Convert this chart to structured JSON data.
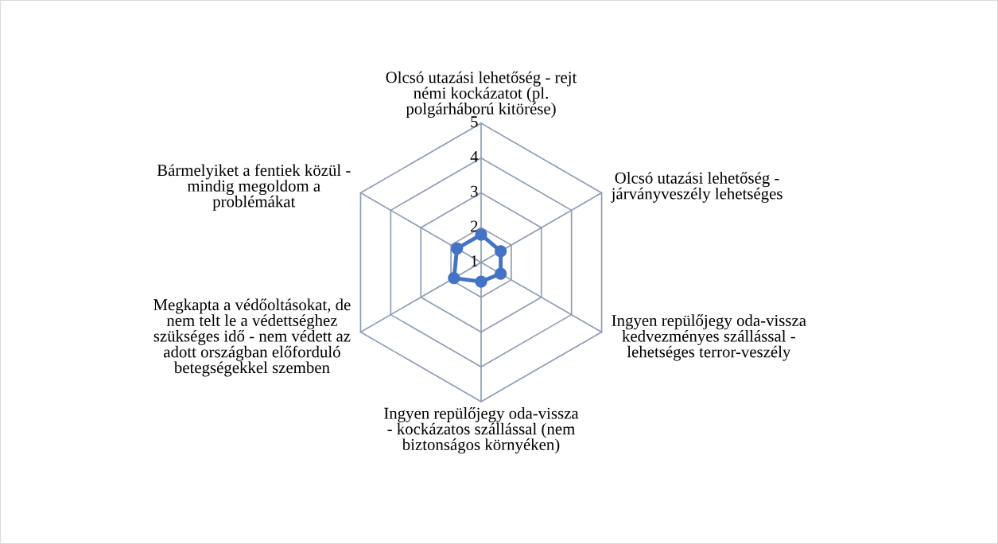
{
  "chart_data": {
    "type": "radar",
    "categories": [
      "Olcsó utazási lehetőség - rejt\nnémi kockázatot (pl.\npolgárháború kitörése)",
      "Olcsó utazási lehetőség -\njárványveszély lehetséges",
      "Ingyen repülőjegy oda-vissza\nkedvezményes szállással -\nlehetséges terror-veszély",
      "Ingyen repülőjegy oda-vissza\n- kockázatos szállással (nem\nbiztonságos környéken)",
      "Megkapta a védőoltásokat, de\nnem telt le a védettséghez\nszükséges idő - nem védett az\nadott országban előforduló\nbetegségekkel szemben",
      "Bármelyiket a fentiek közül -\nmindig megoldom a\nproblémákat"
    ],
    "series": [
      {
        "color": "#4472c4",
        "values": [
          1.8,
          1.65,
          1.65,
          1.55,
          1.9,
          1.8
        ]
      }
    ],
    "ylim": [
      1,
      5
    ],
    "yticks": [
      1,
      2,
      3,
      4,
      5
    ],
    "grid": true,
    "marker": "circle",
    "line_style": "solid"
  }
}
